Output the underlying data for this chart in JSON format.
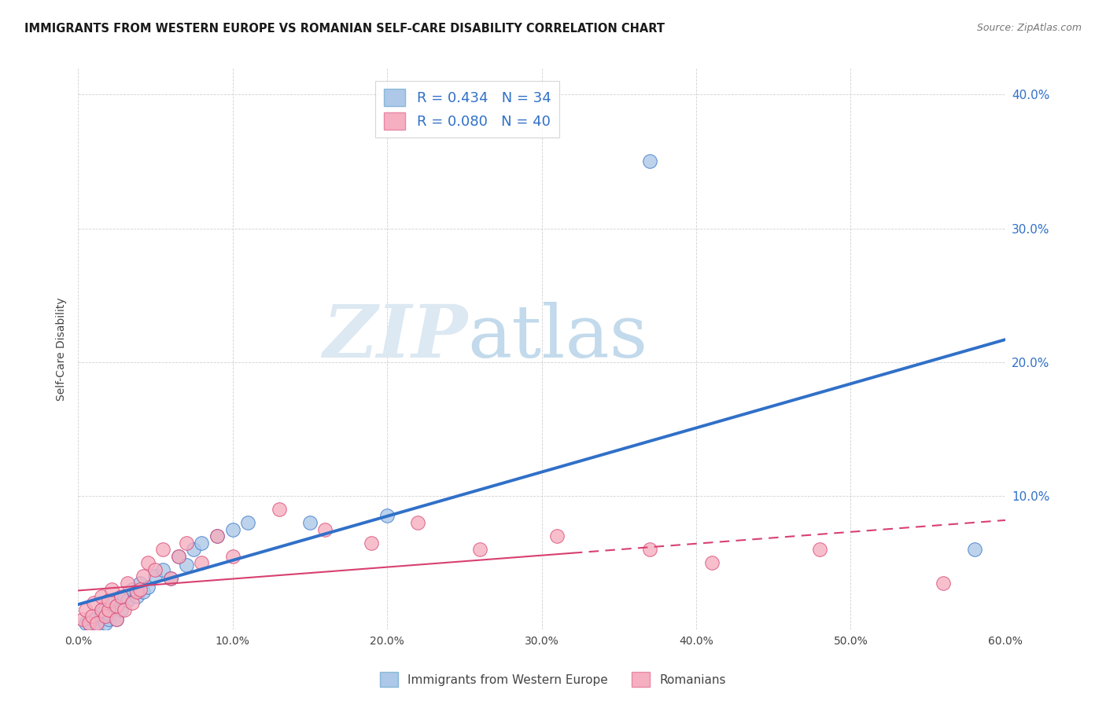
{
  "title": "IMMIGRANTS FROM WESTERN EUROPE VS ROMANIAN SELF-CARE DISABILITY CORRELATION CHART",
  "source": "Source: ZipAtlas.com",
  "ylabel": "Self-Care Disability",
  "legend_label1": "Immigrants from Western Europe",
  "legend_label2": "Romanians",
  "r1": 0.434,
  "n1": 34,
  "r2": 0.08,
  "n2": 40,
  "color1": "#adc8e8",
  "color2": "#f5afc0",
  "line_color1": "#3070c8",
  "line_color2": "#d84070",
  "bg_color": "#ffffff",
  "grid_color": "#cccccc",
  "xlim": [
    0.0,
    0.6
  ],
  "ylim": [
    0.0,
    0.42
  ],
  "ytick_vals": [
    0.0,
    0.1,
    0.2,
    0.3,
    0.4
  ],
  "xtick_vals": [
    0.0,
    0.1,
    0.2,
    0.3,
    0.4,
    0.5,
    0.6
  ],
  "watermark_zip": "ZIP",
  "watermark_atlas": "atlas",
  "blue_scatter_x": [
    0.005,
    0.008,
    0.01,
    0.012,
    0.015,
    0.015,
    0.018,
    0.02,
    0.02,
    0.022,
    0.025,
    0.025,
    0.028,
    0.03,
    0.032,
    0.035,
    0.038,
    0.04,
    0.042,
    0.045,
    0.05,
    0.055,
    0.06,
    0.065,
    0.07,
    0.075,
    0.08,
    0.09,
    0.1,
    0.11,
    0.15,
    0.2,
    0.37,
    0.58
  ],
  "blue_scatter_y": [
    0.005,
    0.003,
    0.008,
    0.002,
    0.01,
    0.015,
    0.005,
    0.008,
    0.012,
    0.02,
    0.008,
    0.018,
    0.015,
    0.025,
    0.022,
    0.03,
    0.025,
    0.035,
    0.028,
    0.032,
    0.04,
    0.045,
    0.038,
    0.055,
    0.048,
    0.06,
    0.065,
    0.07,
    0.075,
    0.08,
    0.08,
    0.085,
    0.35,
    0.06
  ],
  "pink_scatter_x": [
    0.003,
    0.005,
    0.007,
    0.009,
    0.01,
    0.012,
    0.015,
    0.015,
    0.018,
    0.02,
    0.02,
    0.022,
    0.025,
    0.025,
    0.028,
    0.03,
    0.032,
    0.035,
    0.038,
    0.04,
    0.042,
    0.045,
    0.05,
    0.055,
    0.06,
    0.065,
    0.07,
    0.08,
    0.09,
    0.1,
    0.13,
    0.16,
    0.19,
    0.22,
    0.26,
    0.31,
    0.37,
    0.41,
    0.48,
    0.56
  ],
  "pink_scatter_y": [
    0.008,
    0.015,
    0.005,
    0.01,
    0.02,
    0.005,
    0.015,
    0.025,
    0.01,
    0.015,
    0.022,
    0.03,
    0.008,
    0.018,
    0.025,
    0.015,
    0.035,
    0.02,
    0.028,
    0.03,
    0.04,
    0.05,
    0.045,
    0.06,
    0.038,
    0.055,
    0.065,
    0.05,
    0.07,
    0.055,
    0.09,
    0.075,
    0.065,
    0.08,
    0.06,
    0.07,
    0.06,
    0.05,
    0.06,
    0.035
  ]
}
